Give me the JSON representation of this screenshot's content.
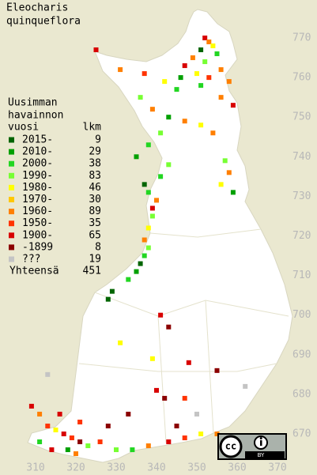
{
  "title": [
    "Eleocharis",
    "quinqueflora"
  ],
  "legend": {
    "header": [
      "Uusimman",
      "havainnon",
      "vuosi"
    ],
    "count_header": "lkm",
    "items": [
      {
        "label": "2015-",
        "count": 9,
        "color": "#006400"
      },
      {
        "label": "2010-",
        "count": 29,
        "color": "#00a000"
      },
      {
        "label": "2000-",
        "count": 38,
        "color": "#22d622"
      },
      {
        "label": "1990-",
        "count": 83,
        "color": "#77ff33"
      },
      {
        "label": "1980-",
        "count": 46,
        "color": "#ffff00"
      },
      {
        "label": "1970-",
        "count": 30,
        "color": "#ffc800"
      },
      {
        "label": "1960-",
        "count": 89,
        "color": "#ff7f00"
      },
      {
        "label": "1950-",
        "count": 35,
        "color": "#ff3300"
      },
      {
        "label": "1900-",
        "count": 65,
        "color": "#d80000"
      },
      {
        "label": "-1899",
        "count": 8,
        "color": "#8b0000"
      },
      {
        "label": "???",
        "count": 19,
        "color": "#c4c4c4"
      }
    ],
    "total_label": "Yhteensä",
    "total": 451
  },
  "map": {
    "yticks": [
      770,
      760,
      750,
      740,
      730,
      720,
      710,
      700,
      690,
      680,
      670
    ],
    "xticks": [
      310,
      320,
      330,
      340,
      350,
      360,
      370
    ],
    "observations": [
      [
        352,
        770,
        8
      ],
      [
        353,
        769,
        6
      ],
      [
        354,
        768,
        4
      ],
      [
        351,
        767,
        0
      ],
      [
        355,
        766,
        2
      ],
      [
        349,
        765,
        6
      ],
      [
        352,
        764,
        3
      ],
      [
        347,
        763,
        8
      ],
      [
        356,
        762,
        6
      ],
      [
        350,
        761,
        4
      ],
      [
        353,
        760,
        7
      ],
      [
        346,
        760,
        1
      ],
      [
        358,
        759,
        6
      ],
      [
        351,
        758,
        2
      ],
      [
        325,
        767,
        8
      ],
      [
        331,
        762,
        6
      ],
      [
        337,
        761,
        7
      ],
      [
        342,
        759,
        4
      ],
      [
        345,
        757,
        2
      ],
      [
        336,
        755,
        3
      ],
      [
        339,
        752,
        6
      ],
      [
        343,
        750,
        1
      ],
      [
        347,
        749,
        6
      ],
      [
        351,
        748,
        4
      ],
      [
        354,
        746,
        6
      ],
      [
        341,
        746,
        3
      ],
      [
        338,
        743,
        2
      ],
      [
        356,
        755,
        6
      ],
      [
        359,
        753,
        8
      ],
      [
        357,
        739,
        3
      ],
      [
        358,
        736,
        6
      ],
      [
        356,
        733,
        4
      ],
      [
        359,
        731,
        1
      ],
      [
        337,
        733,
        0
      ],
      [
        338,
        731,
        2
      ],
      [
        340,
        729,
        6
      ],
      [
        339,
        727,
        8
      ],
      [
        339,
        725,
        3
      ],
      [
        341,
        735,
        2
      ],
      [
        335,
        740,
        1
      ],
      [
        343,
        738,
        3
      ],
      [
        338,
        722,
        4
      ],
      [
        337,
        719,
        6
      ],
      [
        338,
        717,
        3
      ],
      [
        337,
        715,
        2
      ],
      [
        336,
        713,
        0
      ],
      [
        335,
        711,
        1
      ],
      [
        333,
        709,
        2
      ],
      [
        329,
        706,
        0
      ],
      [
        328,
        704,
        0
      ],
      [
        341,
        700,
        8
      ],
      [
        343,
        697,
        9
      ],
      [
        331,
        693,
        4
      ],
      [
        348,
        688,
        8
      ],
      [
        355,
        686,
        9
      ],
      [
        362,
        682,
        10
      ],
      [
        342,
        679,
        9
      ],
      [
        347,
        679,
        7
      ],
      [
        313,
        685,
        10
      ],
      [
        339,
        689,
        4
      ],
      [
        309,
        677,
        8
      ],
      [
        311,
        675,
        6
      ],
      [
        313,
        672,
        7
      ],
      [
        315,
        671,
        4
      ],
      [
        317,
        670,
        8
      ],
      [
        319,
        669,
        7
      ],
      [
        321,
        668,
        9
      ],
      [
        323,
        667,
        3
      ],
      [
        311,
        668,
        2
      ],
      [
        314,
        666,
        8
      ],
      [
        318,
        666,
        1
      ],
      [
        320,
        665,
        6
      ],
      [
        326,
        668,
        7
      ],
      [
        330,
        666,
        3
      ],
      [
        334,
        666,
        2
      ],
      [
        338,
        667,
        6
      ],
      [
        343,
        668,
        8
      ],
      [
        347,
        669,
        7
      ],
      [
        351,
        670,
        4
      ],
      [
        355,
        670,
        6
      ],
      [
        328,
        672,
        9
      ],
      [
        321,
        673,
        7
      ],
      [
        316,
        675,
        8
      ],
      [
        333,
        675,
        9
      ],
      [
        340,
        681,
        8
      ],
      [
        350,
        675,
        10
      ],
      [
        345,
        672,
        9
      ]
    ]
  },
  "license": {
    "cc": "cc",
    "by": "BY"
  }
}
